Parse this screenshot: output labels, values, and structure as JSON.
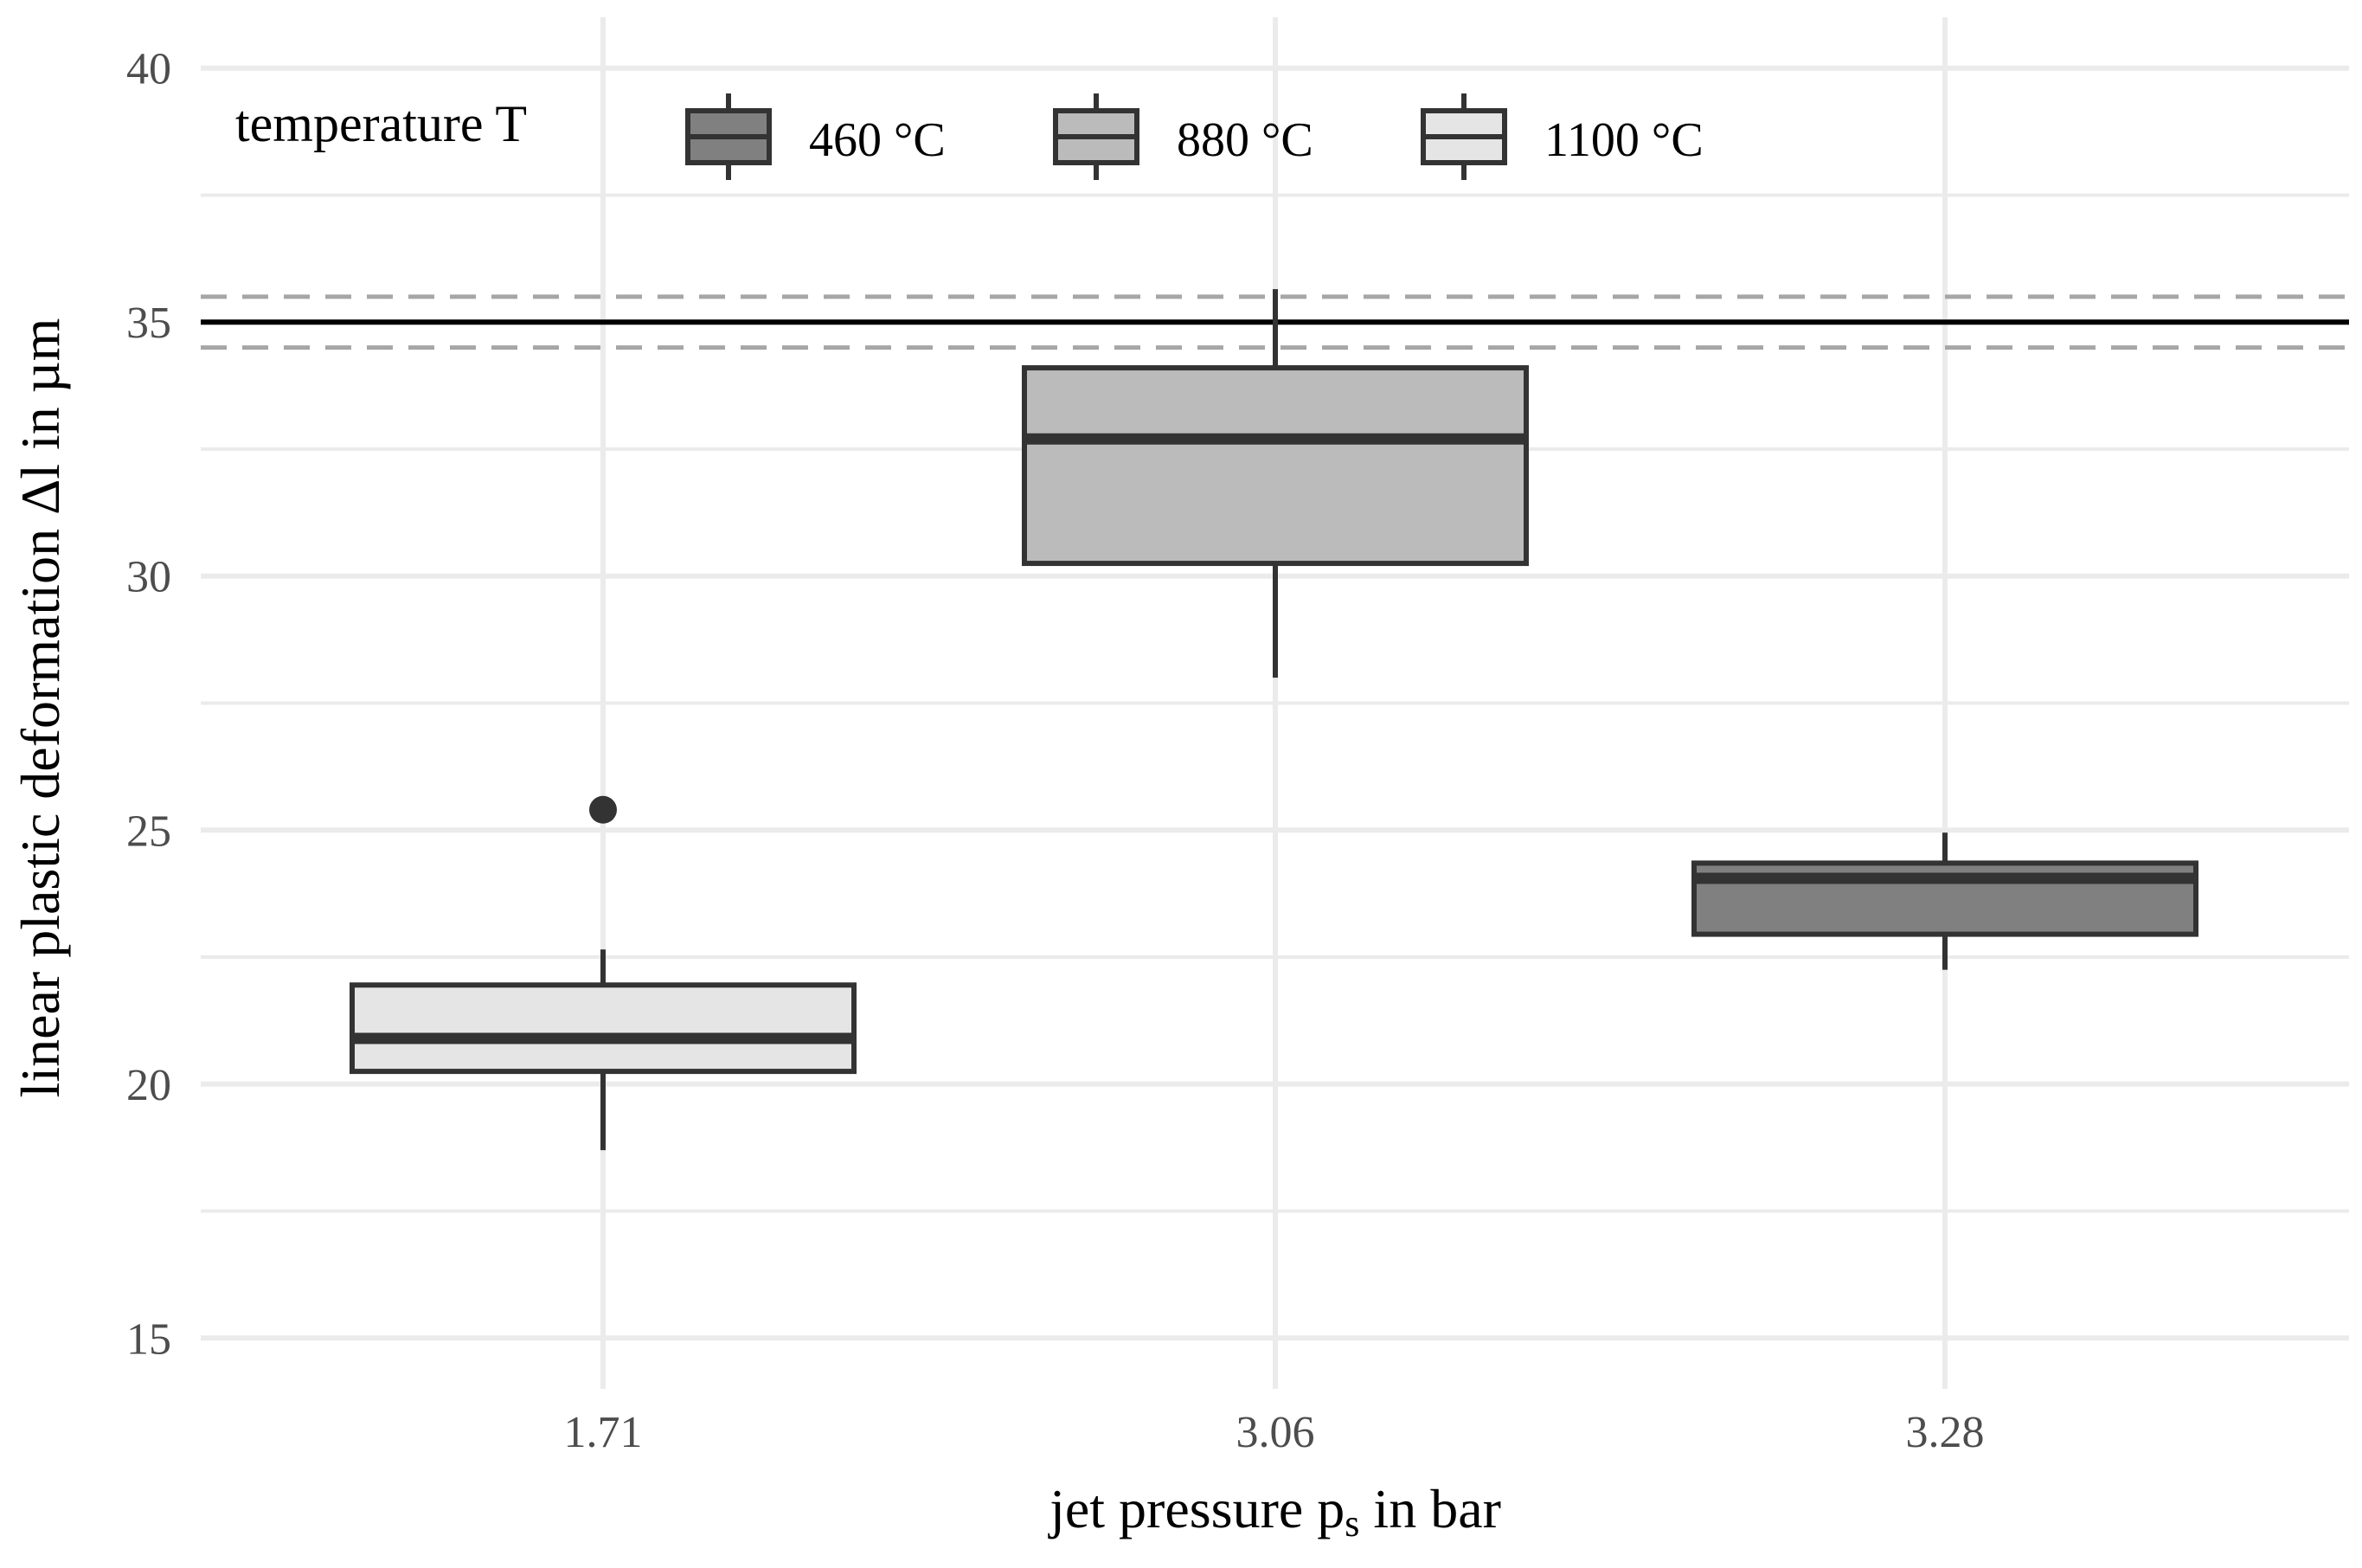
{
  "chart_data": {
    "type": "boxplot",
    "xlabel": {
      "main": "jet pressure p",
      "subscript": "s",
      "suffix": " in bar"
    },
    "ylabel": "linear plastic deformation Δl in µm",
    "categories": [
      "1.71",
      "3.06",
      "3.28"
    ],
    "ylim": [
      14,
      41
    ],
    "yticks": [
      15,
      20,
      25,
      30,
      35,
      40
    ],
    "grid": true,
    "legend": {
      "title": "temperature T",
      "placement": "top",
      "entries": [
        {
          "label": "460 °C",
          "fill": "#808080"
        },
        {
          "label": "880 °C",
          "fill": "#bbbbbb"
        },
        {
          "label": "1100 °C",
          "fill": "#e5e5e5"
        }
      ]
    },
    "boxes": [
      {
        "category": "1.71",
        "group": "1100 °C",
        "fill": "#e5e5e5",
        "whisker_low": 18.7,
        "q1": 20.25,
        "median": 20.9,
        "q3": 21.95,
        "whisker_high": 22.65,
        "outliers": [
          25.4
        ]
      },
      {
        "category": "3.06",
        "group": "880 °C",
        "fill": "#bbbbbb",
        "whisker_low": 28.0,
        "q1": 30.25,
        "median": 32.7,
        "q3": 34.1,
        "whisker_high": 35.65,
        "outliers": []
      },
      {
        "category": "3.28",
        "group": "460 °C",
        "fill": "#808080",
        "whisker_low": 22.25,
        "q1": 22.95,
        "median": 24.05,
        "q3": 24.35,
        "whisker_high": 24.95,
        "outliers": []
      }
    ],
    "reference_lines": [
      {
        "y": 35.0,
        "style": "solid",
        "color": "#000000"
      },
      {
        "y": 35.5,
        "style": "dashed",
        "color": "#a6a6a6"
      },
      {
        "y": 34.5,
        "style": "dashed",
        "color": "#a6a6a6"
      }
    ]
  },
  "colors": {
    "grid": "#ebebeb",
    "box_stroke": "#333333",
    "tick_text": "#4d4d4d"
  }
}
